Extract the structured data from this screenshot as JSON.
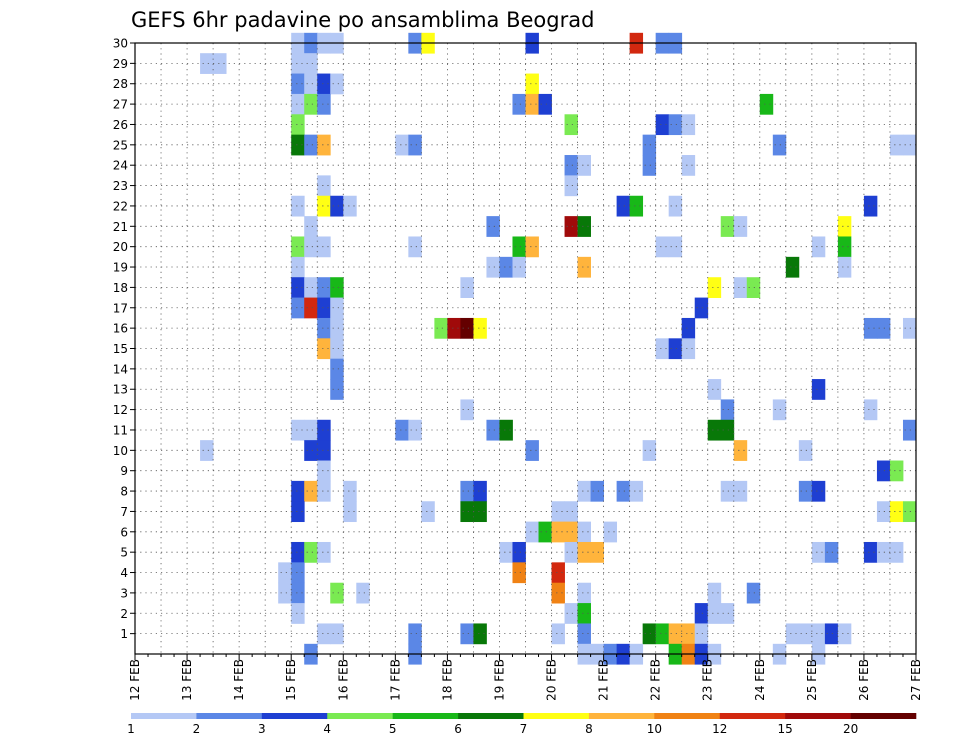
{
  "chart_data": {
    "type": "heatmap",
    "title": "GEFS 6hr padavine po ansamblima Beograd",
    "x_tick_labels": [
      "12 FEB",
      "13 FEB",
      "14 FEB",
      "15 FEB",
      "16 FEB",
      "17 FEB",
      "18 FEB",
      "19 FEB",
      "20 FEB",
      "21 FEB",
      "22 FEB",
      "23 FEB",
      "24 FEB",
      "25 FEB",
      "26 FEB",
      "27 FEB"
    ],
    "x_range_days": [
      12,
      27
    ],
    "y_tick_labels": [
      "1",
      "2",
      "3",
      "4",
      "5",
      "6",
      "7",
      "8",
      "9",
      "10",
      "11",
      "12",
      "13",
      "14",
      "15",
      "16",
      "17",
      "18",
      "19",
      "20",
      "21",
      "22",
      "23",
      "24",
      "25",
      "26",
      "27",
      "28",
      "29",
      "30"
    ],
    "y_range": [
      0,
      30
    ],
    "grid": true,
    "colorbar": {
      "position": "bottom",
      "labels": [
        "1",
        "2",
        "3",
        "4",
        "5",
        "6",
        "7",
        "8",
        "10",
        "12",
        "15",
        "20"
      ],
      "colors": [
        "#b4c8f5",
        "#5b87e6",
        "#1e3fd2",
        "#7aea52",
        "#18b818",
        "#087808",
        "#ffff14",
        "#ffb43c",
        "#f08214",
        "#d2280f",
        "#a00a0a",
        "#640000"
      ]
    },
    "cells": [
      {
        "d": 15.0,
        "m": 30,
        "c": 0
      },
      {
        "d": 15.25,
        "m": 30,
        "c": 1
      },
      {
        "d": 15.5,
        "m": 30,
        "c": 0
      },
      {
        "d": 15.75,
        "m": 30,
        "c": 0
      },
      {
        "d": 17.25,
        "m": 30,
        "c": 1
      },
      {
        "d": 17.5,
        "m": 30,
        "c": 6
      },
      {
        "d": 19.5,
        "m": 30,
        "c": 2
      },
      {
        "d": 21.5,
        "m": 30,
        "c": 9
      },
      {
        "d": 22.0,
        "m": 30,
        "c": 1
      },
      {
        "d": 22.25,
        "m": 30,
        "c": 1
      },
      {
        "d": 13.25,
        "m": 29,
        "c": 0
      },
      {
        "d": 13.5,
        "m": 29,
        "c": 0
      },
      {
        "d": 15.0,
        "m": 29,
        "c": 0
      },
      {
        "d": 15.25,
        "m": 29,
        "c": 0
      },
      {
        "d": 15.0,
        "m": 28,
        "c": 1
      },
      {
        "d": 15.25,
        "m": 28,
        "c": 0
      },
      {
        "d": 15.5,
        "m": 28,
        "c": 2
      },
      {
        "d": 15.75,
        "m": 28,
        "c": 0
      },
      {
        "d": 19.5,
        "m": 28,
        "c": 6
      },
      {
        "d": 15.0,
        "m": 27,
        "c": 0
      },
      {
        "d": 15.25,
        "m": 27,
        "c": 3
      },
      {
        "d": 15.5,
        "m": 27,
        "c": 1
      },
      {
        "d": 19.25,
        "m": 27,
        "c": 1
      },
      {
        "d": 19.5,
        "m": 27,
        "c": 7
      },
      {
        "d": 19.75,
        "m": 27,
        "c": 2
      },
      {
        "d": 24.0,
        "m": 27,
        "c": 4
      },
      {
        "d": 15.0,
        "m": 26,
        "c": 3
      },
      {
        "d": 20.25,
        "m": 26,
        "c": 3
      },
      {
        "d": 22.0,
        "m": 26,
        "c": 2
      },
      {
        "d": 22.25,
        "m": 26,
        "c": 1
      },
      {
        "d": 22.5,
        "m": 26,
        "c": 0
      },
      {
        "d": 15.0,
        "m": 25,
        "c": 5
      },
      {
        "d": 15.25,
        "m": 25,
        "c": 1
      },
      {
        "d": 15.5,
        "m": 25,
        "c": 7
      },
      {
        "d": 17.0,
        "m": 25,
        "c": 0
      },
      {
        "d": 17.25,
        "m": 25,
        "c": 1
      },
      {
        "d": 21.75,
        "m": 25,
        "c": 1
      },
      {
        "d": 24.25,
        "m": 25,
        "c": 1
      },
      {
        "d": 26.5,
        "m": 25,
        "c": 0
      },
      {
        "d": 26.75,
        "m": 25,
        "c": 0
      },
      {
        "d": 20.25,
        "m": 24,
        "c": 1
      },
      {
        "d": 20.5,
        "m": 24,
        "c": 0
      },
      {
        "d": 21.75,
        "m": 24,
        "c": 1
      },
      {
        "d": 22.5,
        "m": 24,
        "c": 0
      },
      {
        "d": 15.5,
        "m": 23,
        "c": 0
      },
      {
        "d": 20.25,
        "m": 23,
        "c": 0
      },
      {
        "d": 15.0,
        "m": 22,
        "c": 0
      },
      {
        "d": 15.5,
        "m": 22,
        "c": 6
      },
      {
        "d": 15.75,
        "m": 22,
        "c": 2
      },
      {
        "d": 16.0,
        "m": 22,
        "c": 0
      },
      {
        "d": 21.25,
        "m": 22,
        "c": 2
      },
      {
        "d": 21.5,
        "m": 22,
        "c": 4
      },
      {
        "d": 22.25,
        "m": 22,
        "c": 0
      },
      {
        "d": 26.0,
        "m": 22,
        "c": 2
      },
      {
        "d": 15.25,
        "m": 21,
        "c": 0
      },
      {
        "d": 18.75,
        "m": 21,
        "c": 1
      },
      {
        "d": 20.25,
        "m": 21,
        "c": 10
      },
      {
        "d": 20.5,
        "m": 21,
        "c": 5
      },
      {
        "d": 23.25,
        "m": 21,
        "c": 3
      },
      {
        "d": 23.5,
        "m": 21,
        "c": 0
      },
      {
        "d": 25.5,
        "m": 21,
        "c": 6
      },
      {
        "d": 15.0,
        "m": 20,
        "c": 3
      },
      {
        "d": 15.25,
        "m": 20,
        "c": 0
      },
      {
        "d": 15.5,
        "m": 20,
        "c": 0
      },
      {
        "d": 17.25,
        "m": 20,
        "c": 0
      },
      {
        "d": 19.25,
        "m": 20,
        "c": 4
      },
      {
        "d": 19.5,
        "m": 20,
        "c": 7
      },
      {
        "d": 22.0,
        "m": 20,
        "c": 0
      },
      {
        "d": 22.25,
        "m": 20,
        "c": 0
      },
      {
        "d": 25.0,
        "m": 20,
        "c": 0
      },
      {
        "d": 25.5,
        "m": 20,
        "c": 4
      },
      {
        "d": 15.0,
        "m": 19,
        "c": 0
      },
      {
        "d": 18.75,
        "m": 19,
        "c": 0
      },
      {
        "d": 19.0,
        "m": 19,
        "c": 1
      },
      {
        "d": 19.25,
        "m": 19,
        "c": 0
      },
      {
        "d": 20.5,
        "m": 19,
        "c": 7
      },
      {
        "d": 24.5,
        "m": 19,
        "c": 5
      },
      {
        "d": 25.5,
        "m": 19,
        "c": 0
      },
      {
        "d": 15.0,
        "m": 18,
        "c": 2
      },
      {
        "d": 15.25,
        "m": 18,
        "c": 0
      },
      {
        "d": 15.5,
        "m": 18,
        "c": 1
      },
      {
        "d": 15.75,
        "m": 18,
        "c": 4
      },
      {
        "d": 18.25,
        "m": 18,
        "c": 0
      },
      {
        "d": 23.0,
        "m": 18,
        "c": 6
      },
      {
        "d": 23.5,
        "m": 18,
        "c": 0
      },
      {
        "d": 23.75,
        "m": 18,
        "c": 3
      },
      {
        "d": 15.0,
        "m": 17,
        "c": 1
      },
      {
        "d": 15.25,
        "m": 17,
        "c": 9
      },
      {
        "d": 15.5,
        "m": 17,
        "c": 2
      },
      {
        "d": 15.75,
        "m": 17,
        "c": 0
      },
      {
        "d": 22.75,
        "m": 17,
        "c": 2
      },
      {
        "d": 15.5,
        "m": 16,
        "c": 1
      },
      {
        "d": 15.75,
        "m": 16,
        "c": 0
      },
      {
        "d": 17.75,
        "m": 16,
        "c": 3
      },
      {
        "d": 18.0,
        "m": 16,
        "c": 10
      },
      {
        "d": 18.25,
        "m": 16,
        "c": 11
      },
      {
        "d": 18.5,
        "m": 16,
        "c": 6
      },
      {
        "d": 22.5,
        "m": 16,
        "c": 2
      },
      {
        "d": 26.0,
        "m": 16,
        "c": 1
      },
      {
        "d": 26.25,
        "m": 16,
        "c": 1
      },
      {
        "d": 26.75,
        "m": 16,
        "c": 0
      },
      {
        "d": 15.5,
        "m": 15,
        "c": 7
      },
      {
        "d": 15.75,
        "m": 15,
        "c": 0
      },
      {
        "d": 22.0,
        "m": 15,
        "c": 0
      },
      {
        "d": 22.25,
        "m": 15,
        "c": 2
      },
      {
        "d": 22.5,
        "m": 15,
        "c": 0
      },
      {
        "d": 15.75,
        "m": 14,
        "c": 1
      },
      {
        "d": 15.75,
        "m": 13,
        "c": 1
      },
      {
        "d": 23.0,
        "m": 13,
        "c": 0
      },
      {
        "d": 25.0,
        "m": 13,
        "c": 2
      },
      {
        "d": 18.25,
        "m": 12,
        "c": 0
      },
      {
        "d": 23.25,
        "m": 12,
        "c": 1
      },
      {
        "d": 24.25,
        "m": 12,
        "c": 0
      },
      {
        "d": 26.0,
        "m": 12,
        "c": 0
      },
      {
        "d": 15.0,
        "m": 11,
        "c": 0
      },
      {
        "d": 15.25,
        "m": 11,
        "c": 0
      },
      {
        "d": 15.5,
        "m": 11,
        "c": 2
      },
      {
        "d": 17.0,
        "m": 11,
        "c": 1
      },
      {
        "d": 17.25,
        "m": 11,
        "c": 0
      },
      {
        "d": 18.75,
        "m": 11,
        "c": 1
      },
      {
        "d": 19.0,
        "m": 11,
        "c": 5
      },
      {
        "d": 23.0,
        "m": 11,
        "c": 5
      },
      {
        "d": 23.25,
        "m": 11,
        "c": 5
      },
      {
        "d": 26.75,
        "m": 11,
        "c": 1
      },
      {
        "d": 13.25,
        "m": 10,
        "c": 0
      },
      {
        "d": 15.25,
        "m": 10,
        "c": 2
      },
      {
        "d": 15.5,
        "m": 10,
        "c": 2
      },
      {
        "d": 19.5,
        "m": 10,
        "c": 1
      },
      {
        "d": 21.75,
        "m": 10,
        "c": 0
      },
      {
        "d": 23.5,
        "m": 10,
        "c": 7
      },
      {
        "d": 24.75,
        "m": 10,
        "c": 0
      },
      {
        "d": 15.5,
        "m": 9,
        "c": 0
      },
      {
        "d": 26.25,
        "m": 9,
        "c": 2
      },
      {
        "d": 26.5,
        "m": 9,
        "c": 3
      },
      {
        "d": 15.0,
        "m": 8,
        "c": 2
      },
      {
        "d": 15.25,
        "m": 8,
        "c": 7
      },
      {
        "d": 15.5,
        "m": 8,
        "c": 0
      },
      {
        "d": 16.0,
        "m": 8,
        "c": 0
      },
      {
        "d": 18.25,
        "m": 8,
        "c": 1
      },
      {
        "d": 18.5,
        "m": 8,
        "c": 2
      },
      {
        "d": 20.5,
        "m": 8,
        "c": 0
      },
      {
        "d": 20.75,
        "m": 8,
        "c": 1
      },
      {
        "d": 21.25,
        "m": 8,
        "c": 1
      },
      {
        "d": 21.5,
        "m": 8,
        "c": 0
      },
      {
        "d": 23.25,
        "m": 8,
        "c": 0
      },
      {
        "d": 23.5,
        "m": 8,
        "c": 0
      },
      {
        "d": 24.75,
        "m": 8,
        "c": 1
      },
      {
        "d": 25.0,
        "m": 8,
        "c": 2
      },
      {
        "d": 15.0,
        "m": 7,
        "c": 2
      },
      {
        "d": 16.0,
        "m": 7,
        "c": 0
      },
      {
        "d": 17.5,
        "m": 7,
        "c": 0
      },
      {
        "d": 18.25,
        "m": 7,
        "c": 5
      },
      {
        "d": 18.5,
        "m": 7,
        "c": 5
      },
      {
        "d": 20.0,
        "m": 7,
        "c": 0
      },
      {
        "d": 20.25,
        "m": 7,
        "c": 0
      },
      {
        "d": 26.25,
        "m": 7,
        "c": 0
      },
      {
        "d": 26.5,
        "m": 7,
        "c": 6
      },
      {
        "d": 26.75,
        "m": 7,
        "c": 3
      },
      {
        "d": 19.5,
        "m": 6,
        "c": 0
      },
      {
        "d": 19.75,
        "m": 6,
        "c": 4
      },
      {
        "d": 20.0,
        "m": 6,
        "c": 7
      },
      {
        "d": 20.25,
        "m": 6,
        "c": 7
      },
      {
        "d": 20.5,
        "m": 6,
        "c": 0
      },
      {
        "d": 21.0,
        "m": 6,
        "c": 0
      },
      {
        "d": 15.0,
        "m": 5,
        "c": 2
      },
      {
        "d": 15.25,
        "m": 5,
        "c": 3
      },
      {
        "d": 15.5,
        "m": 5,
        "c": 0
      },
      {
        "d": 19.0,
        "m": 5,
        "c": 0
      },
      {
        "d": 19.25,
        "m": 5,
        "c": 2
      },
      {
        "d": 20.25,
        "m": 5,
        "c": 0
      },
      {
        "d": 20.5,
        "m": 5,
        "c": 7
      },
      {
        "d": 20.75,
        "m": 5,
        "c": 7
      },
      {
        "d": 25.0,
        "m": 5,
        "c": 0
      },
      {
        "d": 25.25,
        "m": 5,
        "c": 1
      },
      {
        "d": 26.0,
        "m": 5,
        "c": 2
      },
      {
        "d": 26.25,
        "m": 5,
        "c": 0
      },
      {
        "d": 26.5,
        "m": 5,
        "c": 0
      },
      {
        "d": 14.75,
        "m": 4,
        "c": 0
      },
      {
        "d": 15.0,
        "m": 4,
        "c": 1
      },
      {
        "d": 19.25,
        "m": 4,
        "c": 8
      },
      {
        "d": 20.0,
        "m": 4,
        "c": 9
      },
      {
        "d": 14.75,
        "m": 3,
        "c": 0
      },
      {
        "d": 15.0,
        "m": 3,
        "c": 1
      },
      {
        "d": 15.75,
        "m": 3,
        "c": 3
      },
      {
        "d": 16.25,
        "m": 3,
        "c": 0
      },
      {
        "d": 20.0,
        "m": 3,
        "c": 8
      },
      {
        "d": 20.5,
        "m": 3,
        "c": 0
      },
      {
        "d": 23.0,
        "m": 3,
        "c": 0
      },
      {
        "d": 23.75,
        "m": 3,
        "c": 1
      },
      {
        "d": 15.0,
        "m": 2,
        "c": 0
      },
      {
        "d": 20.25,
        "m": 2,
        "c": 0
      },
      {
        "d": 20.5,
        "m": 2,
        "c": 4
      },
      {
        "d": 22.75,
        "m": 2,
        "c": 2
      },
      {
        "d": 23.0,
        "m": 2,
        "c": 0
      },
      {
        "d": 23.25,
        "m": 2,
        "c": 0
      },
      {
        "d": 15.5,
        "m": 1,
        "c": 0
      },
      {
        "d": 15.75,
        "m": 1,
        "c": 0
      },
      {
        "d": 17.25,
        "m": 1,
        "c": 1
      },
      {
        "d": 18.25,
        "m": 1,
        "c": 1
      },
      {
        "d": 18.5,
        "m": 1,
        "c": 5
      },
      {
        "d": 20.0,
        "m": 1,
        "c": 0
      },
      {
        "d": 20.5,
        "m": 1,
        "c": 1
      },
      {
        "d": 21.75,
        "m": 1,
        "c": 5
      },
      {
        "d": 22.0,
        "m": 1,
        "c": 4
      },
      {
        "d": 22.25,
        "m": 1,
        "c": 7
      },
      {
        "d": 22.5,
        "m": 1,
        "c": 7
      },
      {
        "d": 22.75,
        "m": 1,
        "c": 0
      },
      {
        "d": 24.5,
        "m": 1,
        "c": 0
      },
      {
        "d": 24.75,
        "m": 1,
        "c": 0
      },
      {
        "d": 25.0,
        "m": 1,
        "c": 0
      },
      {
        "d": 25.25,
        "m": 1,
        "c": 2
      },
      {
        "d": 25.5,
        "m": 1,
        "c": 0
      },
      {
        "d": 15.25,
        "m": 0,
        "c": 1
      },
      {
        "d": 17.25,
        "m": 0,
        "c": 1
      },
      {
        "d": 20.5,
        "m": 0,
        "c": 0
      },
      {
        "d": 20.75,
        "m": 0,
        "c": 0
      },
      {
        "d": 21.0,
        "m": 0,
        "c": 1
      },
      {
        "d": 21.25,
        "m": 0,
        "c": 2
      },
      {
        "d": 21.5,
        "m": 0,
        "c": 0
      },
      {
        "d": 22.25,
        "m": 0,
        "c": 4
      },
      {
        "d": 22.5,
        "m": 0,
        "c": 8
      },
      {
        "d": 22.75,
        "m": 0,
        "c": 2
      },
      {
        "d": 23.0,
        "m": 0,
        "c": 0
      },
      {
        "d": 24.25,
        "m": 0,
        "c": 0
      },
      {
        "d": 25.0,
        "m": 0,
        "c": 0
      }
    ]
  }
}
